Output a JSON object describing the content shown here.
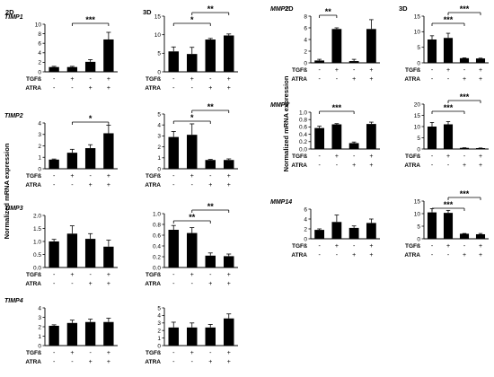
{
  "section_labels": [
    "2D",
    "3D",
    "2D",
    "3D"
  ],
  "y_axis_label": "Normalized mRNA expression",
  "conditions": [
    {
      "label": "TGFß",
      "signs": [
        "-",
        "+",
        "-",
        "+"
      ]
    },
    {
      "label": "ATRA",
      "signs": [
        "-",
        "-",
        "+",
        "+"
      ]
    }
  ],
  "colors": {
    "bar": "#000000"
  },
  "chart_data": [
    {
      "type": "bar",
      "title": "TIMP1",
      "group": "2D",
      "ylim": [
        0,
        10
      ],
      "yticks": [
        0,
        2,
        4,
        6,
        8,
        10
      ],
      "values": [
        1.0,
        1.0,
        2.1,
        6.8
      ],
      "errors": [
        0.15,
        0.15,
        0.45,
        1.5
      ],
      "significance": [
        {
          "from": 1,
          "to": 3,
          "label": "***",
          "level": 0
        }
      ]
    },
    {
      "type": "bar",
      "title": "",
      "group": "3D",
      "ylim": [
        0,
        15
      ],
      "yticks": [
        0,
        5,
        10,
        15
      ],
      "values": [
        5.5,
        4.8,
        8.7,
        9.8
      ],
      "errors": [
        1.2,
        1.8,
        0.3,
        0.4
      ],
      "significance": [
        {
          "from": 0,
          "to": 2,
          "label": "*",
          "level": 0
        },
        {
          "from": 1,
          "to": 3,
          "label": "**",
          "level": 1
        }
      ]
    },
    {
      "type": "bar",
      "title": "TIMP2",
      "group": "2D",
      "ylim": [
        0,
        4
      ],
      "yticks": [
        0,
        1,
        2,
        3,
        4
      ],
      "values": [
        0.8,
        1.4,
        1.8,
        3.1
      ],
      "errors": [
        0.05,
        0.3,
        0.3,
        0.7
      ],
      "significance": [
        {
          "from": 1,
          "to": 3,
          "label": "*",
          "level": 0
        }
      ]
    },
    {
      "type": "bar",
      "title": "",
      "group": "3D",
      "ylim": [
        0,
        5
      ],
      "yticks": [
        0,
        1,
        2,
        3,
        4,
        5
      ],
      "values": [
        2.9,
        3.1,
        0.8,
        0.8
      ],
      "errors": [
        0.5,
        1.0,
        0.05,
        0.1
      ],
      "significance": [
        {
          "from": 0,
          "to": 2,
          "label": "*",
          "level": 0
        },
        {
          "from": 1,
          "to": 3,
          "label": "**",
          "level": 1
        }
      ]
    },
    {
      "type": "bar",
      "title": "TIMP3",
      "group": "2D",
      "ylim": [
        0,
        2.0
      ],
      "yticks": [
        0.0,
        0.5,
        1.0,
        1.5,
        2.0
      ],
      "values": [
        1.0,
        1.3,
        1.1,
        0.8
      ],
      "errors": [
        0.08,
        0.3,
        0.2,
        0.25
      ],
      "significance": []
    },
    {
      "type": "bar",
      "title": "",
      "group": "3D",
      "ylim": [
        0,
        1.0
      ],
      "yticks": [
        0.0,
        0.2,
        0.4,
        0.6,
        0.8,
        1.0
      ],
      "values": [
        0.7,
        0.64,
        0.22,
        0.21
      ],
      "errors": [
        0.08,
        0.1,
        0.05,
        0.04
      ],
      "significance": [
        {
          "from": 0,
          "to": 2,
          "label": "**",
          "level": 0
        },
        {
          "from": 1,
          "to": 3,
          "label": "**",
          "level": 1
        }
      ]
    },
    {
      "type": "bar",
      "title": "TIMP4",
      "group": "2D",
      "ylim": [
        0,
        4
      ],
      "yticks": [
        0,
        1,
        2,
        3,
        4
      ],
      "values": [
        2.1,
        2.4,
        2.5,
        2.5
      ],
      "errors": [
        0.1,
        0.3,
        0.3,
        0.4
      ],
      "significance": []
    },
    {
      "type": "bar",
      "title": "",
      "group": "3D",
      "ylim": [
        0,
        5
      ],
      "yticks": [
        0,
        1,
        2,
        3,
        4,
        5
      ],
      "values": [
        2.4,
        2.4,
        2.4,
        3.6
      ],
      "errors": [
        0.7,
        0.6,
        0.4,
        0.6
      ],
      "significance": []
    },
    {
      "type": "bar",
      "title": "MMP2",
      "group": "2D",
      "ylim": [
        0,
        8
      ],
      "yticks": [
        0,
        2,
        4,
        6,
        8
      ],
      "values": [
        0.4,
        5.8,
        0.3,
        5.8
      ],
      "errors": [
        0.2,
        0.2,
        0.3,
        1.6
      ],
      "significance": [
        {
          "from": 0,
          "to": 1,
          "label": "**",
          "level": 0
        }
      ]
    },
    {
      "type": "bar",
      "title": "",
      "group": "3D",
      "ylim": [
        0,
        15
      ],
      "yticks": [
        0,
        5,
        10,
        15
      ],
      "values": [
        7.5,
        8.0,
        1.5,
        1.4
      ],
      "errors": [
        1.2,
        1.5,
        0.1,
        0.1
      ],
      "significance": [
        {
          "from": 0,
          "to": 2,
          "label": "***",
          "level": 0
        },
        {
          "from": 1,
          "to": 3,
          "label": "***",
          "level": 1
        }
      ]
    },
    {
      "type": "bar",
      "title": "MMP9",
      "group": "2D",
      "ylim": [
        0,
        1.0
      ],
      "yticks": [
        0.0,
        0.2,
        0.4,
        0.6,
        0.8,
        1.0
      ],
      "values": [
        0.57,
        0.67,
        0.16,
        0.68
      ],
      "errors": [
        0.05,
        0.02,
        0.03,
        0.05
      ],
      "significance": [
        {
          "from": 0,
          "to": 2,
          "label": "***",
          "level": 0
        }
      ]
    },
    {
      "type": "bar",
      "title": "",
      "group": "3D",
      "ylim": [
        0,
        20
      ],
      "yticks": [
        0,
        5,
        10,
        15,
        20
      ],
      "values": [
        10.0,
        11.0,
        0.5,
        0.4
      ],
      "errors": [
        1.8,
        1.2,
        0.05,
        0.05
      ],
      "significance": [
        {
          "from": 0,
          "to": 2,
          "label": "***",
          "level": 0
        },
        {
          "from": 1,
          "to": 3,
          "label": "***",
          "level": 1
        }
      ]
    },
    {
      "type": "bar",
      "title": "MMP14",
      "group": "2D",
      "ylim": [
        0,
        6
      ],
      "yticks": [
        0,
        2,
        4,
        6
      ],
      "values": [
        1.8,
        3.4,
        2.2,
        3.2
      ],
      "errors": [
        0.2,
        1.4,
        0.4,
        0.8
      ],
      "significance": []
    },
    {
      "type": "bar",
      "title": "",
      "group": "3D",
      "ylim": [
        0,
        15
      ],
      "yticks": [
        0,
        5,
        10,
        15
      ],
      "values": [
        10.5,
        10.3,
        2.0,
        1.8
      ],
      "errors": [
        1.5,
        1.0,
        0.1,
        0.3
      ],
      "significance": [
        {
          "from": 0,
          "to": 2,
          "label": "***",
          "level": 0
        },
        {
          "from": 1,
          "to": 3,
          "label": "***",
          "level": 1
        }
      ]
    }
  ]
}
